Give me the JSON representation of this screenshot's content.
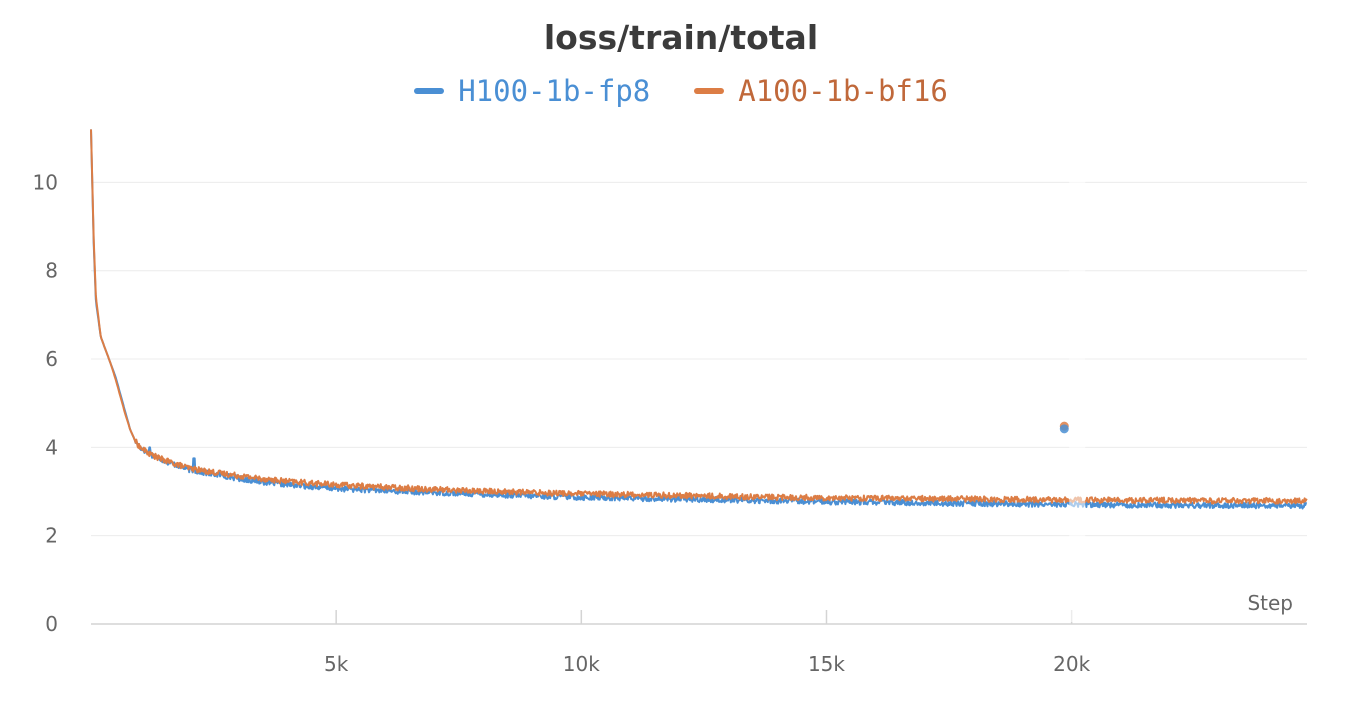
{
  "chart_data": {
    "type": "line",
    "title": "loss/train/total",
    "xlabel": "Step",
    "ylabel": "",
    "xlim": [
      0,
      24800
    ],
    "ylim": [
      0,
      11.3
    ],
    "x_ticks": [
      5000,
      10000,
      15000,
      20000
    ],
    "x_tick_labels": [
      "5k",
      "10k",
      "15k",
      "20k"
    ],
    "y_ticks": [
      0,
      2,
      4,
      6,
      8,
      10
    ],
    "y_tick_labels": [
      "0",
      "2",
      "4",
      "6",
      "8",
      "10"
    ],
    "grid": "horizontal",
    "legend": "top-center",
    "series": [
      {
        "name": "H100-1b-fp8",
        "color": "#4a8fd4",
        "points": [
          [
            0,
            11.2
          ],
          [
            50,
            8.8
          ],
          [
            100,
            7.3
          ],
          [
            200,
            6.5
          ],
          [
            300,
            6.2
          ],
          [
            400,
            5.9
          ],
          [
            500,
            5.6
          ],
          [
            600,
            5.2
          ],
          [
            700,
            4.8
          ],
          [
            800,
            4.4
          ],
          [
            900,
            4.15
          ],
          [
            1000,
            4.0
          ],
          [
            1200,
            3.85
          ],
          [
            1400,
            3.75
          ],
          [
            1600,
            3.65
          ],
          [
            1800,
            3.58
          ],
          [
            2000,
            3.5
          ],
          [
            2300,
            3.43
          ],
          [
            2600,
            3.38
          ],
          [
            3000,
            3.3
          ],
          [
            3500,
            3.22
          ],
          [
            4000,
            3.16
          ],
          [
            5000,
            3.07
          ],
          [
            6000,
            3.02
          ],
          [
            7000,
            2.98
          ],
          [
            8000,
            2.94
          ],
          [
            9000,
            2.9
          ],
          [
            10000,
            2.87
          ],
          [
            11000,
            2.85
          ],
          [
            12000,
            2.83
          ],
          [
            13000,
            2.81
          ],
          [
            14000,
            2.79
          ],
          [
            15000,
            2.77
          ],
          [
            16000,
            2.76
          ],
          [
            17000,
            2.74
          ],
          [
            18000,
            2.73
          ],
          [
            19000,
            2.72
          ],
          [
            19800,
            2.71
          ],
          [
            20000,
            2.71
          ],
          [
            21000,
            2.7
          ],
          [
            22000,
            2.69
          ],
          [
            23000,
            2.69
          ],
          [
            24000,
            2.68
          ],
          [
            24800,
            2.68
          ]
        ],
        "spikes": [
          [
            1200,
            4.0
          ],
          [
            2100,
            3.75
          ]
        ]
      },
      {
        "name": "A100-1b-bf16",
        "color": "#dc7d45",
        "points": [
          [
            0,
            11.2
          ],
          [
            50,
            8.9
          ],
          [
            100,
            7.4
          ],
          [
            200,
            6.5
          ],
          [
            300,
            6.2
          ],
          [
            400,
            5.9
          ],
          [
            500,
            5.55
          ],
          [
            600,
            5.15
          ],
          [
            700,
            4.75
          ],
          [
            800,
            4.4
          ],
          [
            900,
            4.15
          ],
          [
            1000,
            4.0
          ],
          [
            1200,
            3.85
          ],
          [
            1400,
            3.75
          ],
          [
            1600,
            3.67
          ],
          [
            1800,
            3.6
          ],
          [
            2000,
            3.53
          ],
          [
            2300,
            3.47
          ],
          [
            2600,
            3.42
          ],
          [
            3000,
            3.36
          ],
          [
            3500,
            3.29
          ],
          [
            4000,
            3.23
          ],
          [
            5000,
            3.15
          ],
          [
            6000,
            3.1
          ],
          [
            7000,
            3.05
          ],
          [
            8000,
            3.01
          ],
          [
            9000,
            2.98
          ],
          [
            10000,
            2.95
          ],
          [
            11000,
            2.93
          ],
          [
            12000,
            2.91
          ],
          [
            13000,
            2.89
          ],
          [
            14000,
            2.87
          ],
          [
            15000,
            2.86
          ],
          [
            16000,
            2.85
          ],
          [
            17000,
            2.84
          ],
          [
            18000,
            2.83
          ],
          [
            19000,
            2.82
          ],
          [
            19800,
            2.81
          ],
          [
            20000,
            2.81
          ],
          [
            21000,
            2.8
          ],
          [
            22000,
            2.8
          ],
          [
            23000,
            2.79
          ],
          [
            24000,
            2.79
          ],
          [
            24800,
            2.78
          ]
        ],
        "spikes": []
      }
    ],
    "outlier_points": [
      {
        "series": "A100-1b-bf16",
        "x": 19850,
        "y": 4.48
      },
      {
        "series": "H100-1b-fp8",
        "x": 19850,
        "y": 4.42
      }
    ]
  }
}
